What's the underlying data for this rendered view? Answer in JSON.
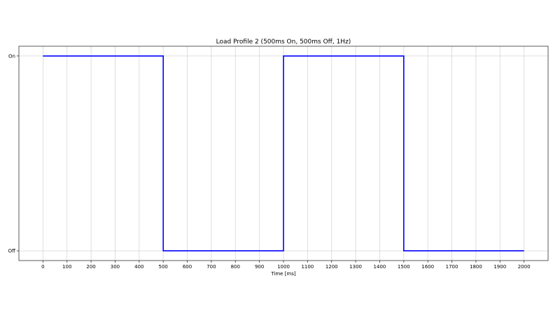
{
  "chart_data": {
    "type": "line",
    "title": "Load Profile 2 (500ms On, 500ms Off, 1Hz)",
    "xlabel": "Time [ms]",
    "ylabel": "",
    "xlim": [
      -100,
      2100
    ],
    "ylim": [
      -0.05,
      1.05
    ],
    "xticks": [
      0,
      100,
      200,
      300,
      400,
      500,
      600,
      700,
      800,
      900,
      1000,
      1100,
      1200,
      1300,
      1400,
      1500,
      1600,
      1700,
      1800,
      1900,
      2000
    ],
    "yticks": [
      {
        "value": 0,
        "label": "Off"
      },
      {
        "value": 1,
        "label": "On"
      }
    ],
    "grid": true,
    "step": true,
    "series": [
      {
        "color": "#0000ff",
        "x": [
          0,
          500,
          500,
          1000,
          1000,
          1500,
          1500,
          2000
        ],
        "y": [
          1,
          1,
          0,
          0,
          1,
          1,
          0,
          0
        ]
      }
    ]
  }
}
